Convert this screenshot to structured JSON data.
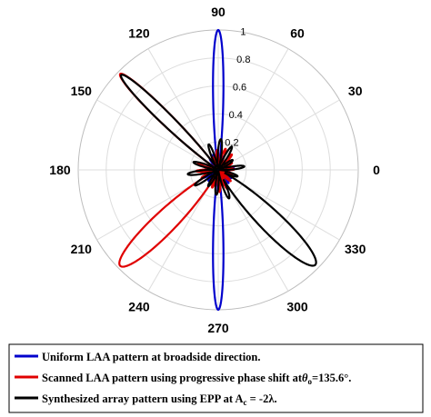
{
  "chart_data": {
    "type": "polar-line",
    "angle_ticks": [
      "90",
      "60",
      "30",
      "0",
      "330",
      "300",
      "270",
      "240",
      "210",
      "180",
      "150",
      "120"
    ],
    "angle_tick_values": [
      90,
      60,
      30,
      0,
      330,
      300,
      270,
      240,
      210,
      180,
      150,
      120
    ],
    "radial_ticks": [
      "0.2",
      "0.4",
      "0.6",
      "0.8",
      "1"
    ],
    "radial_tick_values": [
      0.2,
      0.4,
      0.6,
      0.8,
      1
    ],
    "rlim": [
      0,
      1
    ],
    "grid": true,
    "legend_position": "bottom",
    "series": [
      {
        "name": "Uniform LAA pattern at broadside direction.",
        "color": "#0000cc",
        "main_lobes": [
          {
            "angle": 90,
            "peak": 1.0,
            "width": 5
          },
          {
            "angle": 270,
            "peak": 1.0,
            "width": 5
          }
        ]
      },
      {
        "name": "Scanned LAA pattern using progressive phase shift at",
        "name_symbol": "θ",
        "name_subscript": "o",
        "name_tail": "=135.6°.",
        "color": "#e00000",
        "main_lobes": [
          {
            "angle": 135.6,
            "peak": 0.98,
            "width": 6
          },
          {
            "angle": 224.4,
            "peak": 0.98,
            "width": 11
          }
        ]
      },
      {
        "name": "Synthesized array pattern using EPP at A",
        "name_subscript": "c",
        "name_tail": " = -2λ.",
        "color": "#000000",
        "main_lobes": [
          {
            "angle": 135.6,
            "peak": 0.97,
            "width": 6
          },
          {
            "angle": 315.6,
            "peak": 0.97,
            "width": 11
          }
        ]
      }
    ]
  }
}
